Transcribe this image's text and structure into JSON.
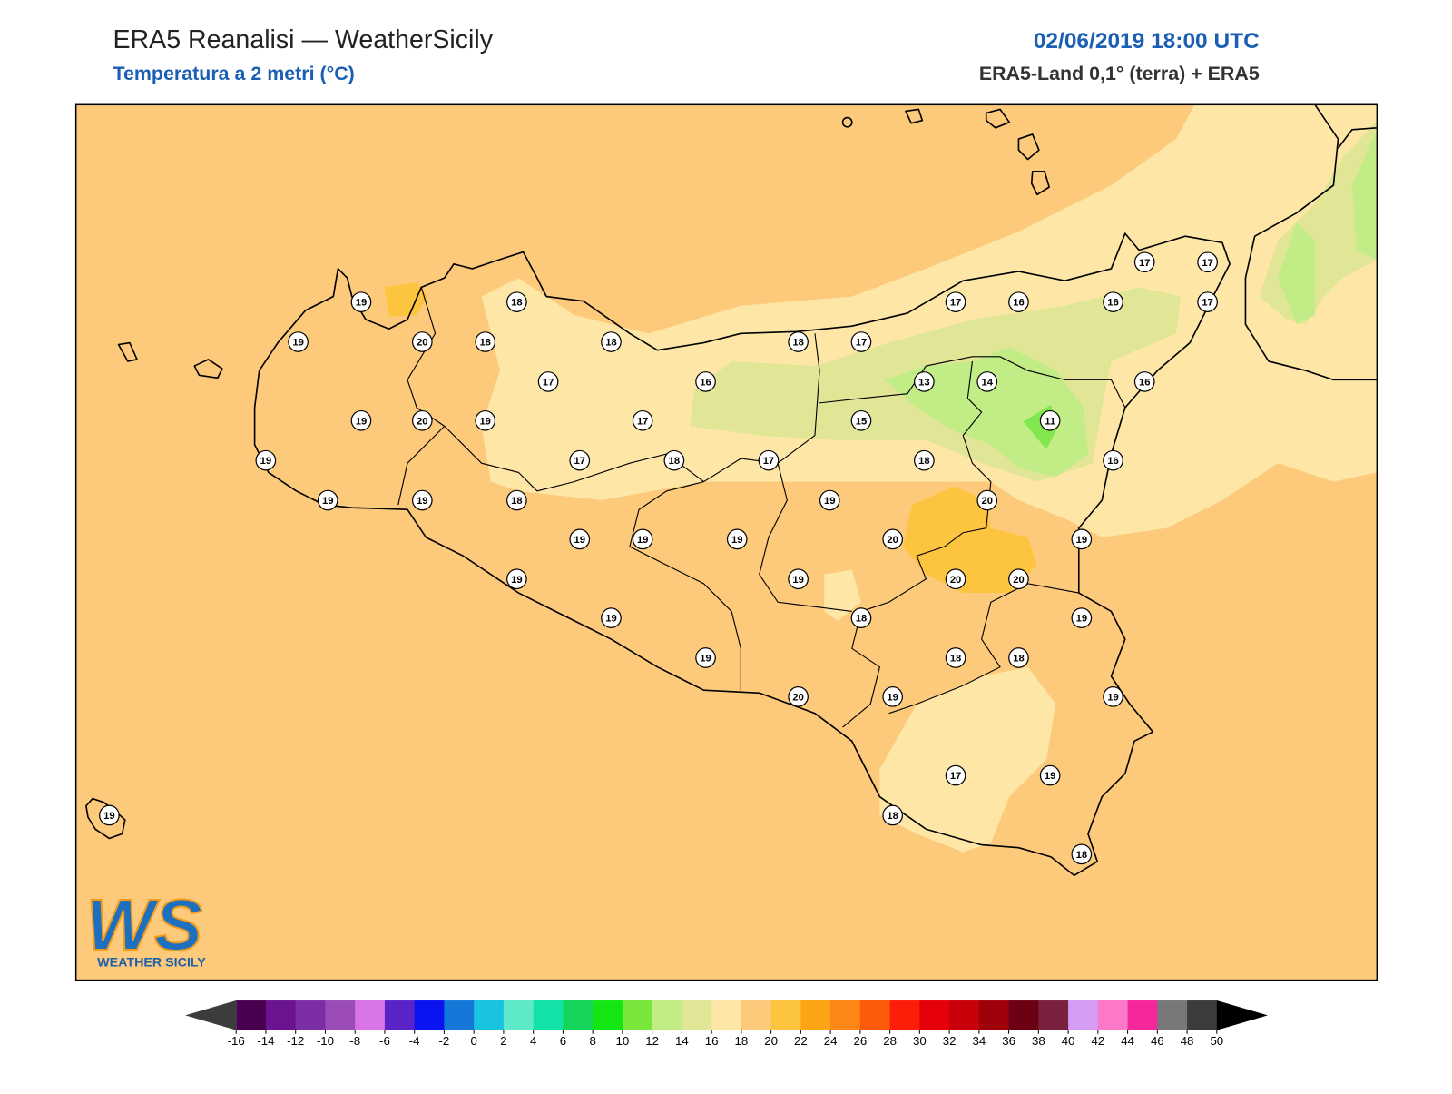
{
  "header": {
    "title": "ERA5 Reanalisi — WeatherSicily",
    "subtitle": "Temperatura a 2 metri (°C)",
    "datetime": "02/06/2019 18:00 UTC",
    "source": "ERA5-Land 0,1° (terra) + ERA5"
  },
  "logo": {
    "mark": "WS",
    "caption": "WEATHER SICILY"
  },
  "stations": [
    19,
    18,
    19,
    20,
    18,
    18,
    17,
    16,
    19,
    20,
    19,
    17,
    19,
    17,
    18,
    17,
    19,
    19,
    18,
    19,
    19,
    19,
    19,
    19,
    19,
    20,
    18,
    17,
    17,
    16,
    16,
    17,
    17,
    17,
    13,
    14,
    16,
    15,
    11,
    18,
    16,
    19,
    20,
    20,
    19,
    19,
    20,
    20,
    18,
    19,
    18,
    18,
    19,
    19,
    17,
    19,
    18,
    18,
    19
  ],
  "colorbar": {
    "ticks": [
      -16,
      -14,
      -12,
      -10,
      -8,
      -6,
      -4,
      -2,
      0,
      2,
      4,
      6,
      8,
      10,
      12,
      14,
      16,
      18,
      20,
      22,
      24,
      26,
      28,
      30,
      32,
      34,
      36,
      38,
      40,
      42,
      44,
      46,
      48,
      50
    ],
    "colors": [
      "#4a0050",
      "#6a1490",
      "#7c2fa5",
      "#9b4cb8",
      "#d873e8",
      "#5a23c8",
      "#0a14f0",
      "#1478d8",
      "#18c4e0",
      "#5eeac8",
      "#12e2a8",
      "#14d45a",
      "#14e614",
      "#7ae63c",
      "#c2ec86",
      "#e0e696",
      "#fde6a6",
      "#fdc97a",
      "#fdc53f",
      "#fda414",
      "#fd8614",
      "#fd5a0a",
      "#fd1e0a",
      "#e6000a",
      "#c8000a",
      "#9e000a",
      "#6e0014",
      "#7a2040",
      "#d49cf4",
      "#fc78c8",
      "#f4289a",
      "#787878",
      "#3c3c3c"
    ],
    "under_color": "#3c3c3c",
    "over_color": "#000000"
  }
}
